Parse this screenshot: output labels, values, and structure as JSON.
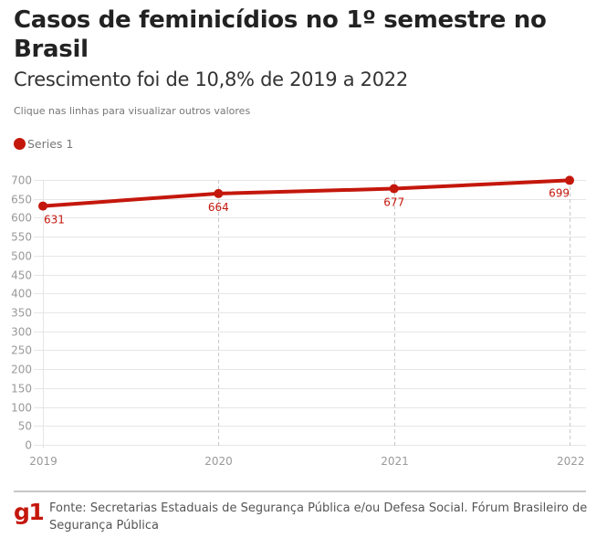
{
  "header": {
    "title": "Casos de feminicídios no 1º semestre no Brasil",
    "subtitle": "Crescimento foi de 10,8% de 2019 a 2022",
    "hint": "Clique nas linhas para visualizar outros valores"
  },
  "legend": {
    "label": "Series 1",
    "color": "#c4170c"
  },
  "footer": {
    "logo": "g1",
    "source": "Fonte: Secretarias Estaduais de Segurança Pública e/ou Defesa Social. Fórum Brasileiro de Segurança Pública"
  },
  "chart_data": {
    "type": "line",
    "title": "Casos de feminicídios no 1º semestre no Brasil",
    "subtitle": "Crescimento foi de 10,8% de 2019 a 2022",
    "xlabel": "",
    "ylabel": "",
    "categories": [
      "2019",
      "2020",
      "2021",
      "2022"
    ],
    "series": [
      {
        "name": "Series 1",
        "color": "#c4170c",
        "values": [
          631,
          664,
          677,
          699
        ]
      }
    ],
    "ylim": [
      0,
      700
    ],
    "yticks": [
      0,
      50,
      100,
      150,
      200,
      250,
      300,
      350,
      400,
      450,
      500,
      550,
      600,
      650,
      700
    ],
    "grid": true,
    "legend_position": "top-left",
    "data_labels": true
  }
}
